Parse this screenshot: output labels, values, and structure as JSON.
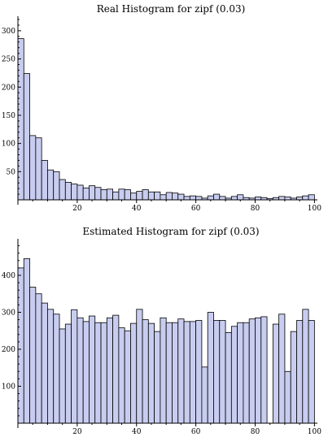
{
  "chart_data": [
    {
      "type": "bar",
      "title": "Real Histogram for zipf (0.03)",
      "xlabel": "",
      "ylabel": "",
      "bin_width": 2,
      "bin_start": 0,
      "xlim": [
        0,
        101
      ],
      "ylim": [
        0,
        320
      ],
      "x_ticks": [
        20,
        40,
        60,
        80,
        100
      ],
      "y_ticks": [
        50,
        100,
        150,
        200,
        250,
        300
      ],
      "values": [
        286,
        224,
        114,
        110,
        70,
        53,
        50,
        36,
        31,
        28,
        26,
        21,
        25,
        22,
        18,
        19,
        14,
        19,
        18,
        12,
        15,
        18,
        14,
        14,
        9,
        13,
        12,
        10,
        6,
        7,
        6,
        3,
        7,
        10,
        6,
        3,
        6,
        9,
        4,
        3,
        5,
        4,
        2,
        4,
        6,
        5,
        3,
        5,
        7,
        9
      ]
    },
    {
      "type": "bar",
      "title": "Estimated Histogram for zipf (0.03)",
      "xlabel": "",
      "ylabel": "",
      "bin_width": 2,
      "bin_start": 0,
      "xlim": [
        0,
        101
      ],
      "ylim": [
        0,
        490
      ],
      "x_ticks": [
        20,
        40,
        60,
        80,
        100
      ],
      "y_ticks": [
        100,
        200,
        300,
        400
      ],
      "values": [
        420,
        445,
        368,
        350,
        325,
        308,
        295,
        255,
        268,
        307,
        285,
        275,
        290,
        272,
        272,
        285,
        292,
        258,
        250,
        270,
        308,
        280,
        270,
        248,
        285,
        272,
        272,
        282,
        275,
        275,
        278,
        152,
        300,
        278,
        278,
        245,
        262,
        272,
        272,
        282,
        285,
        288,
        0,
        268,
        295,
        140,
        248,
        278,
        308,
        278
      ]
    }
  ]
}
